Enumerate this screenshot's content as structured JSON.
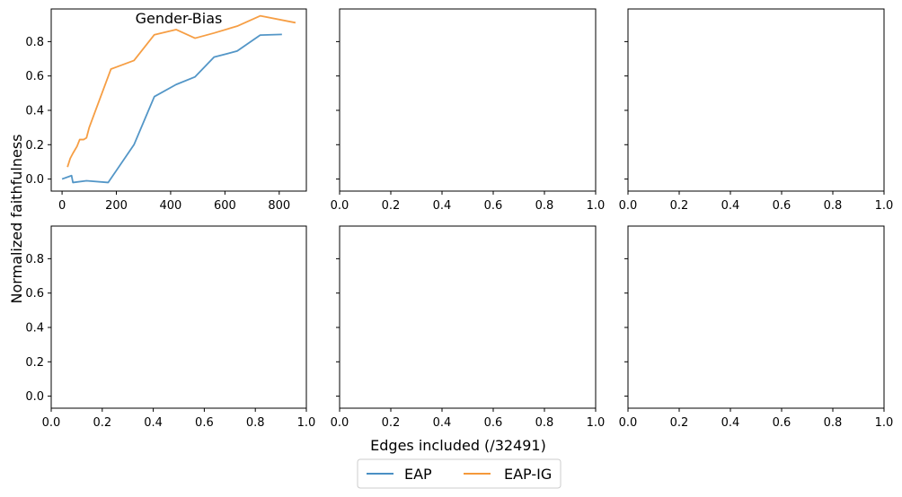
{
  "figure": {
    "xlabel": "Edges included (/32491)",
    "ylabel": "Normalized faithfulness"
  },
  "legend": {
    "placement": "bottom-center",
    "items": [
      {
        "label": "EAP",
        "color": "#4a90c4"
      },
      {
        "label": "EAP-IG",
        "color": "#f5993a"
      }
    ]
  },
  "chart_data": [
    {
      "type": "line",
      "title": "Gender-Bias",
      "xlim": [
        -40,
        900
      ],
      "ylim": [
        -0.07,
        0.99
      ],
      "xticks": [
        0,
        200,
        400,
        600,
        800
      ],
      "xtick_labels": [
        "0",
        "200",
        "400",
        "600",
        "800"
      ],
      "yticks": [
        0.0,
        0.2,
        0.4,
        0.6,
        0.8
      ],
      "ytick_labels": [
        "0.0",
        "0.2",
        "0.4",
        "0.6",
        "0.8"
      ],
      "series": [
        {
          "name": "EAP",
          "color": "#4a90c4",
          "x": [
            0,
            35,
            40,
            90,
            170,
            265,
            340,
            420,
            490,
            560,
            645,
            730,
            810
          ],
          "y": [
            0.0,
            0.02,
            -0.02,
            -0.01,
            -0.02,
            0.2,
            0.48,
            0.55,
            0.595,
            0.71,
            0.745,
            0.838,
            0.842
          ]
        },
        {
          "name": "EAP-IG",
          "color": "#f5993a",
          "x": [
            20,
            30,
            40,
            55,
            65,
            80,
            90,
            100,
            180,
            265,
            340,
            420,
            490,
            560,
            645,
            730,
            860
          ],
          "y": [
            0.07,
            0.12,
            0.15,
            0.19,
            0.23,
            0.23,
            0.24,
            0.3,
            0.64,
            0.69,
            0.84,
            0.87,
            0.82,
            0.85,
            0.89,
            0.95,
            0.91
          ]
        }
      ]
    },
    {
      "type": "line",
      "title": "",
      "xlim": [
        0,
        1
      ],
      "ylim": [
        -0.07,
        0.99
      ],
      "xticks": [
        0,
        0.2,
        0.4,
        0.6,
        0.8,
        1.0
      ],
      "xtick_labels": [
        "0.0",
        "0.2",
        "0.4",
        "0.6",
        "0.8",
        "1.0"
      ],
      "yticks": [
        0.0,
        0.2,
        0.4,
        0.6,
        0.8
      ],
      "ytick_labels": [],
      "series": []
    },
    {
      "type": "line",
      "title": "",
      "xlim": [
        0,
        1
      ],
      "ylim": [
        -0.07,
        0.99
      ],
      "xticks": [
        0,
        0.2,
        0.4,
        0.6,
        0.8,
        1.0
      ],
      "xtick_labels": [
        "0.0",
        "0.2",
        "0.4",
        "0.6",
        "0.8",
        "1.0"
      ],
      "yticks": [
        0.0,
        0.2,
        0.4,
        0.6,
        0.8
      ],
      "ytick_labels": [],
      "series": []
    },
    {
      "type": "line",
      "title": "",
      "xlim": [
        0,
        1
      ],
      "ylim": [
        -0.07,
        0.99
      ],
      "xticks": [
        0,
        0.2,
        0.4,
        0.6,
        0.8,
        1.0
      ],
      "xtick_labels": [
        "0.0",
        "0.2",
        "0.4",
        "0.6",
        "0.8",
        "1.0"
      ],
      "yticks": [
        0.0,
        0.2,
        0.4,
        0.6,
        0.8
      ],
      "ytick_labels": [
        "0.0",
        "0.2",
        "0.4",
        "0.6",
        "0.8"
      ],
      "series": []
    },
    {
      "type": "line",
      "title": "",
      "xlim": [
        0,
        1
      ],
      "ylim": [
        -0.07,
        0.99
      ],
      "xticks": [
        0,
        0.2,
        0.4,
        0.6,
        0.8,
        1.0
      ],
      "xtick_labels": [
        "0.0",
        "0.2",
        "0.4",
        "0.6",
        "0.8",
        "1.0"
      ],
      "yticks": [
        0.0,
        0.2,
        0.4,
        0.6,
        0.8
      ],
      "ytick_labels": [],
      "series": []
    },
    {
      "type": "line",
      "title": "",
      "xlim": [
        0,
        1
      ],
      "ylim": [
        -0.07,
        0.99
      ],
      "xticks": [
        0,
        0.2,
        0.4,
        0.6,
        0.8,
        1.0
      ],
      "xtick_labels": [
        "0.0",
        "0.2",
        "0.4",
        "0.6",
        "0.8",
        "1.0"
      ],
      "yticks": [
        0.0,
        0.2,
        0.4,
        0.6,
        0.8
      ],
      "ytick_labels": [],
      "series": []
    }
  ]
}
